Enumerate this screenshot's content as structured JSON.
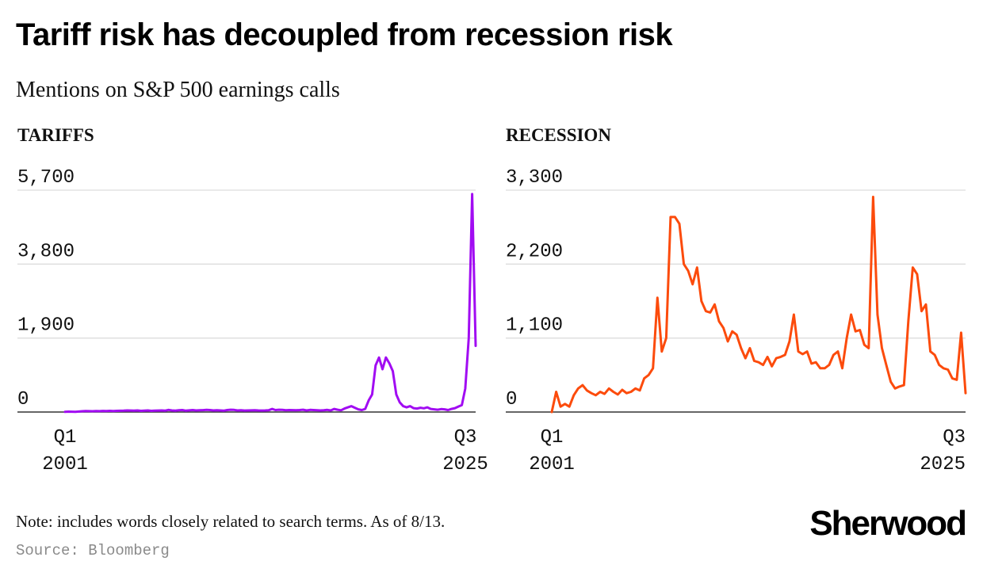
{
  "title": "Tariff risk has decoupled from recession risk",
  "subtitle": "Mentions on S&P 500 earnings calls",
  "note": "Note: includes words closely related to search terms. As of 8/13.",
  "source": "Source: Bloomberg",
  "brand": "Sherwood",
  "chart_data": [
    {
      "type": "line",
      "panel_title": "TARIFFS",
      "color": "#a10cf2",
      "ylim": [
        0,
        5700
      ],
      "yticks": [
        0,
        1900,
        3800,
        5700
      ],
      "ytick_labels": [
        "0",
        "1,900",
        "3,800",
        "5,700"
      ],
      "x_start_label": [
        "Q1",
        "2001"
      ],
      "x_end_label": [
        "Q3",
        "2025"
      ],
      "x_range": [
        "Q1 2001",
        "Q3 2025"
      ],
      "values": [
        5,
        10,
        8,
        5,
        12,
        20,
        25,
        22,
        20,
        25,
        22,
        28,
        25,
        30,
        25,
        30,
        32,
        35,
        40,
        38,
        35,
        40,
        30,
        35,
        40,
        30,
        35,
        38,
        40,
        35,
        55,
        40,
        35,
        45,
        50,
        35,
        42,
        50,
        40,
        45,
        48,
        55,
        50,
        40,
        45,
        40,
        35,
        50,
        60,
        55,
        40,
        45,
        38,
        40,
        42,
        45,
        40,
        38,
        40,
        45,
        80,
        50,
        60,
        55,
        45,
        50,
        48,
        45,
        50,
        60,
        40,
        55,
        50,
        45,
        40,
        45,
        55,
        40,
        80,
        60,
        45,
        90,
        120,
        150,
        110,
        70,
        50,
        80,
        300,
        450,
        1200,
        1400,
        1100,
        1400,
        1250,
        1050,
        450,
        250,
        150,
        120,
        150,
        100,
        90,
        110,
        95,
        120,
        80,
        70,
        60,
        75,
        70,
        50,
        80,
        100,
        140,
        180,
        600,
        1900,
        5600,
        1700
      ]
    },
    {
      "type": "line",
      "panel_title": "RECESSION",
      "color": "#fc4b0c",
      "ylim": [
        0,
        3300
      ],
      "yticks": [
        0,
        1100,
        2200,
        3300
      ],
      "ytick_labels": [
        "0",
        "1,100",
        "2,200",
        "3,300"
      ],
      "x_start_label": [
        "Q1",
        "2001"
      ],
      "x_end_label": [
        "Q3",
        "2025"
      ],
      "x_range": [
        "Q1 2001",
        "Q3 2025"
      ],
      "values": [
        0,
        300,
        80,
        120,
        80,
        250,
        350,
        400,
        320,
        280,
        250,
        300,
        270,
        350,
        300,
        260,
        330,
        280,
        300,
        350,
        320,
        500,
        550,
        650,
        1700,
        900,
        1100,
        2900,
        2900,
        2800,
        2200,
        2100,
        1900,
        2150,
        1650,
        1500,
        1480,
        1600,
        1350,
        1250,
        1050,
        1200,
        1150,
        950,
        800,
        950,
        760,
        740,
        700,
        820,
        680,
        800,
        820,
        850,
        1050,
        1450,
        900,
        860,
        900,
        720,
        740,
        650,
        650,
        700,
        850,
        900,
        650,
        1100,
        1450,
        1200,
        1220,
        1000,
        950,
        3200,
        1450,
        950,
        700,
        450,
        350,
        380,
        400,
        1350,
        2150,
        2050,
        1500,
        1600,
        900,
        850,
        700,
        650,
        630,
        500,
        480,
        1180,
        280
      ]
    }
  ]
}
